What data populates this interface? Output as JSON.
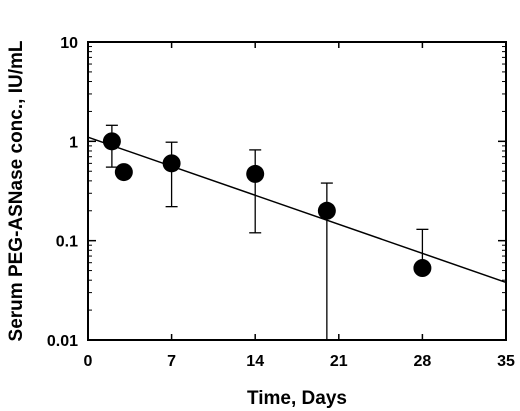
{
  "chart_data": {
    "type": "scatter",
    "xlabel": "Time, Days",
    "ylabel": "Serum PEG-ASNase conc., IU/mL",
    "xlim": [
      0,
      35
    ],
    "ylim": [
      0.01,
      10
    ],
    "yscale": "log",
    "xticks": [
      0,
      7,
      14,
      21,
      28,
      35
    ],
    "yticks": [
      0.01,
      0.1,
      1,
      10
    ],
    "xtick_labels": [
      "0",
      "7",
      "14",
      "21",
      "28",
      "35"
    ],
    "ytick_labels": [
      "0.01",
      "0.1",
      "1",
      "10"
    ],
    "grid": false,
    "points": [
      {
        "x": 2,
        "y": 1.0,
        "err_low": 0.55,
        "err_high": 1.45
      },
      {
        "x": 3,
        "y": 0.49
      },
      {
        "x": 7,
        "y": 0.6,
        "err_low": 0.22,
        "err_high": 0.98
      },
      {
        "x": 14,
        "y": 0.47,
        "err_low": 0.12,
        "err_high": 0.82
      },
      {
        "x": 20,
        "y": 0.2,
        "err_low": 0.01,
        "err_high": 0.38
      },
      {
        "x": 28,
        "y": 0.053,
        "err_low": 0.053,
        "err_high": 0.13
      }
    ],
    "fit_line": {
      "x": [
        0,
        35
      ],
      "y": [
        1.1,
        0.038
      ]
    },
    "colors": {
      "marker": "#000000",
      "line": "#000000"
    }
  }
}
